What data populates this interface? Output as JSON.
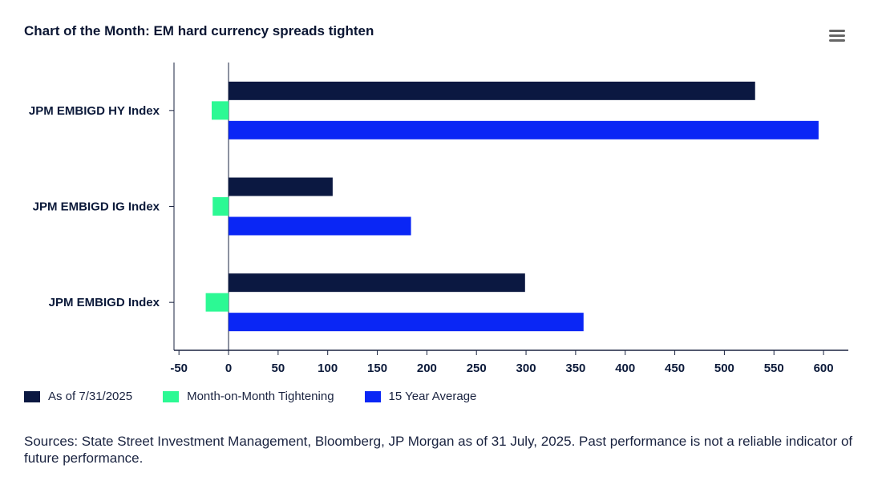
{
  "title": "Chart of the Month: EM hard currency spreads tighten",
  "menu_icon": "hamburger-menu-icon",
  "colors": {
    "as_of": "#0b1841",
    "mom": "#2cf994",
    "avg15": "#0a26f5",
    "axis": "#1a2340"
  },
  "chart_data": {
    "type": "bar",
    "orientation": "horizontal",
    "categories": [
      "JPM EMBIGD HY Index",
      "JPM EMBIGD IG Index",
      "JPM EMBIGD Index"
    ],
    "series": [
      {
        "name": "As of 7/31/2025",
        "values": [
          531,
          105,
          299
        ]
      },
      {
        "name": "Month-on-Month Tightening",
        "values": [
          -17,
          -16,
          -23
        ]
      },
      {
        "name": "15 Year Average",
        "values": [
          595,
          184,
          358
        ]
      }
    ],
    "xlim": [
      -55,
      625
    ],
    "xticks": [
      -50,
      0,
      50,
      100,
      150,
      200,
      250,
      300,
      350,
      400,
      450,
      500,
      550,
      600
    ],
    "legend_position": "bottom-left",
    "grid": false
  },
  "source_note": "Sources: State Street Investment Management, Bloomberg, JP Morgan as of 31 July, 2025. Past performance is not a reliable indicator of future performance."
}
